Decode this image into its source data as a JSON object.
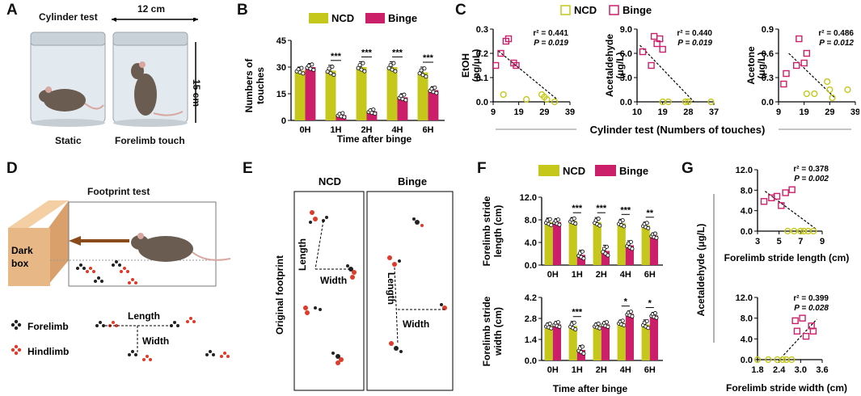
{
  "panelA": {
    "letter": "A",
    "title": "Cylinder test",
    "width_label": "12 cm",
    "height_label": "15 cm",
    "caption_left": "Static",
    "caption_right": "Forelimb touch"
  },
  "panelB": {
    "letter": "B",
    "legend": [
      "NCD",
      "Binge"
    ],
    "ylabel_line1": "Numbers of",
    "ylabel_line2": "touches",
    "xlabel": "Time after binge",
    "stars": [
      "***",
      "***",
      "***",
      "***"
    ]
  },
  "panelC": {
    "letter": "C",
    "legend": [
      "NCD",
      "Binge"
    ],
    "shared_xlabel": "Cylinder test (Numbers of touches)",
    "sub": [
      {
        "ylabel1": "EtOH",
        "ylabel2": "(ng/μL)",
        "r2": "r² = 0.441",
        "p": "P = 0.019"
      },
      {
        "ylabel1": "Acetaldehyde",
        "ylabel2": "(μg/L)",
        "r2": "r² = 0.440",
        "p": "P = 0.019"
      },
      {
        "ylabel1": "Acetone",
        "ylabel2": "(μg/L)",
        "r2": "r² = 0.486",
        "p": "P = 0.012"
      }
    ]
  },
  "panelD": {
    "letter": "D",
    "title": "Footprint test",
    "dark_box_line1": "Dark",
    "dark_box_line2": "box",
    "legend_forelimb": "Forelimb",
    "legend_hindlimb": "Hindlimb",
    "length_label": "Length",
    "width_label": "Width"
  },
  "panelE": {
    "letter": "E",
    "col_ncd": "NCD",
    "col_binge": "Binge",
    "side_label": "Original footprint",
    "length_label": "Length",
    "width_label": "Width"
  },
  "panelF": {
    "letter": "F",
    "legend": [
      "NCD",
      "Binge"
    ],
    "top_ylabel1": "Forelimb stride",
    "top_ylabel2": "length (cm)",
    "bottom_ylabel1": "Forelimb stride",
    "bottom_ylabel2": "width (cm)",
    "xlabel": "Time after binge",
    "top_stars": [
      "***",
      "***",
      "***",
      "**"
    ],
    "bottom_stars": [
      "***",
      "*",
      "*"
    ]
  },
  "panelG": {
    "letter": "G",
    "ylabel": "Acetaldehyde (μg/L)",
    "top_r2": "r² = 0.378",
    "top_p": "P = 0.002",
    "top_xlabel": "Forelimb stride length (cm)",
    "bottom_r2": "r² = 0.399",
    "bottom_p": "P = 0.028",
    "bottom_xlabel": "Forelimb stride width (cm)"
  },
  "colors": {
    "ncd": "#c5c71a",
    "binge": "#cc1f6a",
    "red": "#e03a2a"
  },
  "chart_data": [
    {
      "id": "B",
      "type": "bar",
      "categories": [
        "0H",
        "1H",
        "2H",
        "4H",
        "6H"
      ],
      "series": [
        {
          "name": "NCD",
          "values": [
            28,
            28,
            30,
            30,
            27
          ],
          "errors": [
            2,
            3,
            3,
            3,
            3
          ]
        },
        {
          "name": "Binge",
          "values": [
            30,
            3,
            5,
            13,
            17
          ],
          "errors": [
            2,
            1.5,
            1.5,
            2,
            2
          ]
        }
      ],
      "ylim": [
        0,
        45
      ],
      "yticks": [
        "0",
        "15",
        "30",
        "45"
      ],
      "ylabel": "Numbers of touches",
      "xlabel": "Time after binge"
    },
    {
      "id": "C1",
      "type": "scatter",
      "xticks": [
        "9",
        "19",
        "29",
        "39"
      ],
      "xlim": [
        9,
        39
      ],
      "yticks": [
        "0.0",
        "0.1",
        "0.2",
        "0.3"
      ],
      "ylim": [
        0,
        0.3
      ],
      "ncd": [
        [
          13,
          0.03
        ],
        [
          22,
          0.01
        ],
        [
          28,
          0.03
        ],
        [
          29,
          0.02
        ],
        [
          30,
          0.01
        ],
        [
          33,
          0.0
        ]
      ],
      "binge": [
        [
          10,
          0.15
        ],
        [
          12,
          0.2
        ],
        [
          14,
          0.25
        ],
        [
          15,
          0.26
        ],
        [
          17,
          0.16
        ],
        [
          18,
          0.15
        ]
      ],
      "trend": [
        [
          11,
          0.21
        ],
        [
          34,
          0.01
        ]
      ]
    },
    {
      "id": "C2",
      "type": "scatter",
      "xticks": [
        "10",
        "19",
        "28",
        "37"
      ],
      "xlim": [
        10,
        37
      ],
      "yticks": [
        "0.0",
        "3.0",
        "6.0",
        "9.0"
      ],
      "ylim": [
        0,
        9
      ],
      "ncd": [
        [
          19,
          0.0
        ],
        [
          21,
          0.0
        ],
        [
          27,
          0.0
        ],
        [
          28,
          0.0
        ],
        [
          36,
          0.0
        ]
      ],
      "binge": [
        [
          12,
          6.2
        ],
        [
          15,
          4.5
        ],
        [
          16,
          8.1
        ],
        [
          17,
          7.2
        ],
        [
          18,
          7.8
        ],
        [
          19,
          6.5
        ]
      ],
      "trend": [
        [
          11,
          7.0
        ],
        [
          30,
          0.0
        ]
      ]
    },
    {
      "id": "C3",
      "type": "scatter",
      "xticks": [
        "9",
        "19",
        "29",
        "39"
      ],
      "xlim": [
        9,
        39
      ],
      "yticks": [
        "0.0",
        "0.3",
        "0.6",
        "0.9"
      ],
      "ylim": [
        0,
        0.9
      ],
      "ncd": [
        [
          20,
          0.1
        ],
        [
          23,
          0.1
        ],
        [
          28,
          0.25
        ],
        [
          29,
          0.15
        ],
        [
          30,
          0.05
        ],
        [
          36,
          0.15
        ]
      ],
      "binge": [
        [
          11,
          0.22
        ],
        [
          12,
          0.35
        ],
        [
          16,
          0.45
        ],
        [
          17,
          0.78
        ],
        [
          19,
          0.48
        ],
        [
          20,
          0.6
        ]
      ],
      "trend": [
        [
          13,
          0.6
        ],
        [
          31,
          0.05
        ]
      ]
    },
    {
      "id": "F-top",
      "type": "bar",
      "categories": [
        "0H",
        "1H",
        "2H",
        "4H",
        "6H"
      ],
      "series": [
        {
          "name": "NCD",
          "values": [
            7.6,
            7.8,
            7.6,
            7.4,
            7.0
          ],
          "errors": [
            0.7,
            0.6,
            0.8,
            0.7,
            0.6
          ]
        },
        {
          "name": "Binge",
          "values": [
            7.6,
            1.8,
            2.5,
            3.5,
            5.2
          ],
          "errors": [
            0.6,
            0.8,
            1.0,
            0.8,
            0.5
          ]
        }
      ],
      "ylim": [
        0,
        12
      ],
      "yticks": [
        "0.0",
        "4.0",
        "8.0",
        "12.0"
      ],
      "ylabel": "Forelimb stride length (cm)"
    },
    {
      "id": "F-bottom",
      "type": "bar",
      "categories": [
        "0H",
        "1H",
        "2H",
        "4H",
        "6H"
      ],
      "series": [
        {
          "name": "NCD",
          "values": [
            2.3,
            2.3,
            2.3,
            2.5,
            2.4
          ],
          "errors": [
            0.2,
            0.3,
            0.2,
            0.2,
            0.3
          ]
        },
        {
          "name": "Binge",
          "values": [
            2.4,
            0.7,
            2.4,
            3.1,
            3.0
          ],
          "errors": [
            0.2,
            0.3,
            0.2,
            0.2,
            0.2
          ]
        }
      ],
      "ylim": [
        0,
        4.2
      ],
      "yticks": [
        "0.0",
        "1.4",
        "2.8",
        "4.2"
      ],
      "ylabel": "Forelimb stride width (cm)",
      "xlabel": "Time after binge"
    },
    {
      "id": "G-top",
      "type": "scatter",
      "xticks": [
        "3",
        "5",
        "7",
        "9"
      ],
      "xlim": [
        3,
        9
      ],
      "yticks": [
        "0.0",
        "4.0",
        "8.0",
        "12.0"
      ],
      "ylim": [
        0,
        12
      ],
      "ncd": [
        [
          5.8,
          0.0
        ],
        [
          6.4,
          0.0
        ],
        [
          7.0,
          0.0
        ],
        [
          7.3,
          0.0
        ],
        [
          7.7,
          0.0
        ],
        [
          8.2,
          0.0
        ]
      ],
      "binge": [
        [
          3.6,
          5.8
        ],
        [
          4.3,
          6.5
        ],
        [
          4.8,
          6.8
        ],
        [
          5.2,
          5.0
        ],
        [
          5.6,
          7.5
        ],
        [
          6.2,
          8.1
        ]
      ],
      "trend": [
        [
          3.7,
          7.8
        ],
        [
          8.5,
          0.3
        ]
      ]
    },
    {
      "id": "G-bottom",
      "type": "scatter",
      "xticks": [
        "1.8",
        "2.4",
        "3.0",
        "3.6"
      ],
      "xlim": [
        1.8,
        3.6
      ],
      "yticks": [
        "0.0",
        "4.0",
        "8.0",
        "12.0"
      ],
      "ylim": [
        0,
        12
      ],
      "ncd": [
        [
          1.8,
          0.0
        ],
        [
          2.1,
          0.0
        ],
        [
          2.35,
          0.0
        ],
        [
          2.5,
          0.0
        ],
        [
          2.6,
          0.0
        ],
        [
          2.75,
          0.0
        ]
      ],
      "binge": [
        [
          2.85,
          7.5
        ],
        [
          2.9,
          5.5
        ],
        [
          3.05,
          8.0
        ],
        [
          3.15,
          4.5
        ],
        [
          3.3,
          6.5
        ],
        [
          3.35,
          5.5
        ]
      ],
      "trend": [
        [
          2.45,
          0.3
        ],
        [
          3.45,
          7.8
        ]
      ]
    }
  ]
}
